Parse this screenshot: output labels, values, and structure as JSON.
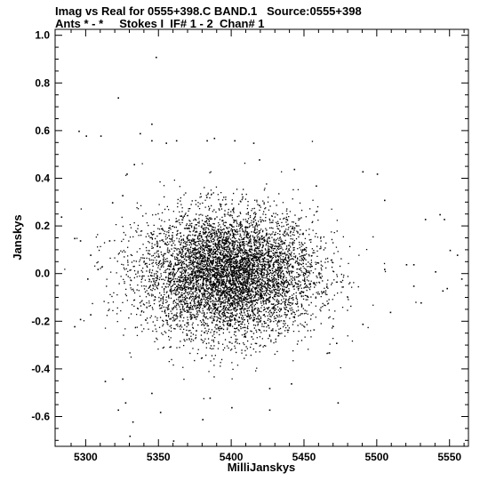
{
  "chart_data": {
    "type": "scatter",
    "title": "Imag vs Real for 0555+398.C BAND.1   Source:0555+398",
    "subtitle": "Ants * - *     Stokes I  IF# 1 - 2  Chan# 1",
    "xlabel": "MilliJanskys",
    "ylabel": "Janskys",
    "xlim": [
      5279,
      5563
    ],
    "ylim": [
      -0.725,
      1.025
    ],
    "xticks": [
      5300,
      5350,
      5400,
      5450,
      5500,
      5550
    ],
    "xticklabels": [
      "5300",
      "5350",
      "5400",
      "5450",
      "5500",
      "5550"
    ],
    "yticks": [
      -0.6,
      -0.4,
      -0.2,
      0.0,
      0.2,
      0.4,
      0.6,
      0.8,
      1.0
    ],
    "yticklabels": [
      "-0.6",
      "-0.4",
      "-0.2",
      "0.0",
      "0.2",
      "0.4",
      "0.6",
      "0.8",
      "1.0"
    ],
    "grid": false,
    "legend": "none",
    "point_color": "#000000",
    "points": [
      [
        5348,
        0.91
      ],
      [
        5322,
        0.74
      ],
      [
        5295,
        0.6
      ],
      [
        5300,
        0.58
      ],
      [
        5310,
        0.58
      ],
      [
        5337,
        0.59
      ],
      [
        5345,
        0.63
      ],
      [
        5345,
        0.56
      ],
      [
        5355,
        0.55
      ],
      [
        5362,
        0.56
      ],
      [
        5383,
        0.56
      ],
      [
        5388,
        0.57
      ],
      [
        5402,
        0.56
      ],
      [
        5415,
        0.55
      ],
      [
        5419,
        0.48
      ],
      [
        5443,
        0.44
      ],
      [
        5458,
        0.37
      ],
      [
        5490,
        0.43
      ],
      [
        5500,
        0.42
      ],
      [
        5505,
        0.31
      ],
      [
        5533,
        0.23
      ],
      [
        5543,
        0.25
      ],
      [
        5546,
        0.23
      ],
      [
        5550,
        0.1
      ],
      [
        5548,
        -0.06
      ],
      [
        5545,
        -0.07
      ],
      [
        5530,
        -0.12
      ],
      [
        5525,
        -0.05
      ],
      [
        5509,
        -0.16
      ],
      [
        5505,
        0.02
      ],
      [
        5520,
        0.04
      ],
      [
        5525,
        0.04
      ],
      [
        5490,
        -0.21
      ],
      [
        5472,
        -0.29
      ],
      [
        5467,
        -0.33
      ],
      [
        5473,
        -0.54
      ],
      [
        5441,
        -0.46
      ],
      [
        5426,
        -0.57
      ],
      [
        5426,
        -0.48
      ],
      [
        5400,
        -0.56
      ],
      [
        5385,
        -0.52
      ],
      [
        5380,
        -0.61
      ],
      [
        5360,
        -0.7
      ],
      [
        5351,
        -0.58
      ],
      [
        5345,
        -0.5
      ],
      [
        5332,
        -0.62
      ],
      [
        5330,
        -0.68
      ],
      [
        5327,
        -0.54
      ],
      [
        5322,
        -0.57
      ],
      [
        5313,
        -0.45
      ],
      [
        5325,
        -0.44
      ],
      [
        5292,
        -0.22
      ],
      [
        5296,
        -0.19
      ],
      [
        5303,
        -0.17
      ],
      [
        5301,
        -0.02
      ],
      [
        5296,
        0.14
      ],
      [
        5292,
        0.15
      ],
      [
        5283,
        0.24
      ],
      [
        5303,
        0.08
      ],
      [
        5308,
        0.02
      ],
      [
        5316,
        0.14
      ],
      [
        5318,
        0.3
      ],
      [
        5325,
        0.33
      ],
      [
        5328,
        0.42
      ],
      [
        5333,
        0.46
      ],
      [
        5555,
        0.08
      ],
      [
        5558,
        -0.02
      ],
      [
        5540,
        0.01
      ]
    ]
  }
}
